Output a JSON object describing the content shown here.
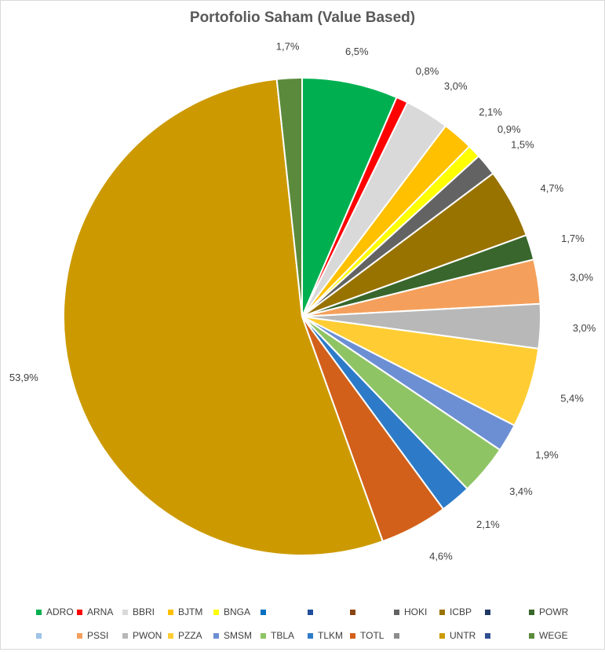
{
  "chart_data": {
    "type": "pie",
    "title": "Portofolio Saham (Value Based)",
    "slices": [
      {
        "name": "ADRO",
        "value": 6.5,
        "label": "6,5%",
        "color": "#00b050"
      },
      {
        "name": "ARNA",
        "value": 0.8,
        "label": "0,8%",
        "color": "#ff0000"
      },
      {
        "name": "BBRI",
        "value": 3.0,
        "label": "3,0%",
        "color": "#d9d9d9"
      },
      {
        "name": "BJTM",
        "value": 2.1,
        "label": "2,1%",
        "color": "#ffc000"
      },
      {
        "name": "BNGA",
        "value": 0.9,
        "label": "0,9%",
        "color": "#ffff00"
      },
      {
        "name": "HOKI",
        "value": 1.5,
        "label": "1,5%",
        "color": "#636363"
      },
      {
        "name": "ICBP",
        "value": 4.7,
        "label": "4,7%",
        "color": "#997300"
      },
      {
        "name": "POWR",
        "value": 1.7,
        "label": "1,7%",
        "color": "#38662c"
      },
      {
        "name": "PSSI",
        "value": 3.0,
        "label": "3,0%",
        "color": "#f4a05c"
      },
      {
        "name": "PWON",
        "value": 3.0,
        "label": "3,0%",
        "color": "#b8b8b8"
      },
      {
        "name": "PZZA",
        "value": 5.4,
        "label": "5,4%",
        "color": "#ffcd33"
      },
      {
        "name": "SMSM",
        "value": 1.9,
        "label": "1,9%",
        "color": "#6c8fd4"
      },
      {
        "name": "TBLA",
        "value": 3.4,
        "label": "3,4%",
        "color": "#8fc465"
      },
      {
        "name": "TLKM",
        "value": 2.1,
        "label": "2,1%",
        "color": "#2d7bc8"
      },
      {
        "name": "TOTL",
        "value": 4.6,
        "label": "4,6%",
        "color": "#d2601a"
      },
      {
        "name": "UNTR",
        "value": 53.9,
        "label": "53,9%",
        "color": "#cc9a00"
      },
      {
        "name": "WEGE",
        "value": 1.7,
        "label": "1,7%",
        "color": "#5b8a3c"
      }
    ],
    "legend_position": "bottom",
    "legend": [
      [
        {
          "name": "ADRO",
          "color": "#00b050"
        },
        {
          "name": "ARNA",
          "color": "#ff0000"
        },
        {
          "name": "BBRI",
          "color": "#d9d9d9"
        },
        {
          "name": "BJTM",
          "color": "#ffc000"
        },
        {
          "name": "BNGA",
          "color": "#ffff00"
        },
        {
          "name": "",
          "color": "#0070c0"
        },
        {
          "name": "",
          "color": "#1f4e9c"
        },
        {
          "name": "",
          "color": "#8b4513"
        },
        {
          "name": "HOKI",
          "color": "#636363"
        },
        {
          "name": "ICBP",
          "color": "#997300"
        },
        {
          "name": "",
          "color": "#1f3864"
        },
        {
          "name": "POWR",
          "color": "#38662c"
        }
      ],
      [
        {
          "name": "",
          "color": "#9dc3e6"
        },
        {
          "name": "PSSI",
          "color": "#f4a05c"
        },
        {
          "name": "PWON",
          "color": "#b8b8b8"
        },
        {
          "name": "PZZA",
          "color": "#ffcd33"
        },
        {
          "name": "SMSM",
          "color": "#6c8fd4"
        },
        {
          "name": "TBLA",
          "color": "#8fc465"
        },
        {
          "name": "TLKM",
          "color": "#2d7bc8"
        },
        {
          "name": "TOTL",
          "color": "#d2601a"
        },
        {
          "name": "",
          "color": "#8c8c8c"
        },
        {
          "name": "UNTR",
          "color": "#cc9a00"
        },
        {
          "name": "",
          "color": "#2f4f8f"
        },
        {
          "name": "WEGE",
          "color": "#5b8a3c"
        }
      ]
    ]
  }
}
